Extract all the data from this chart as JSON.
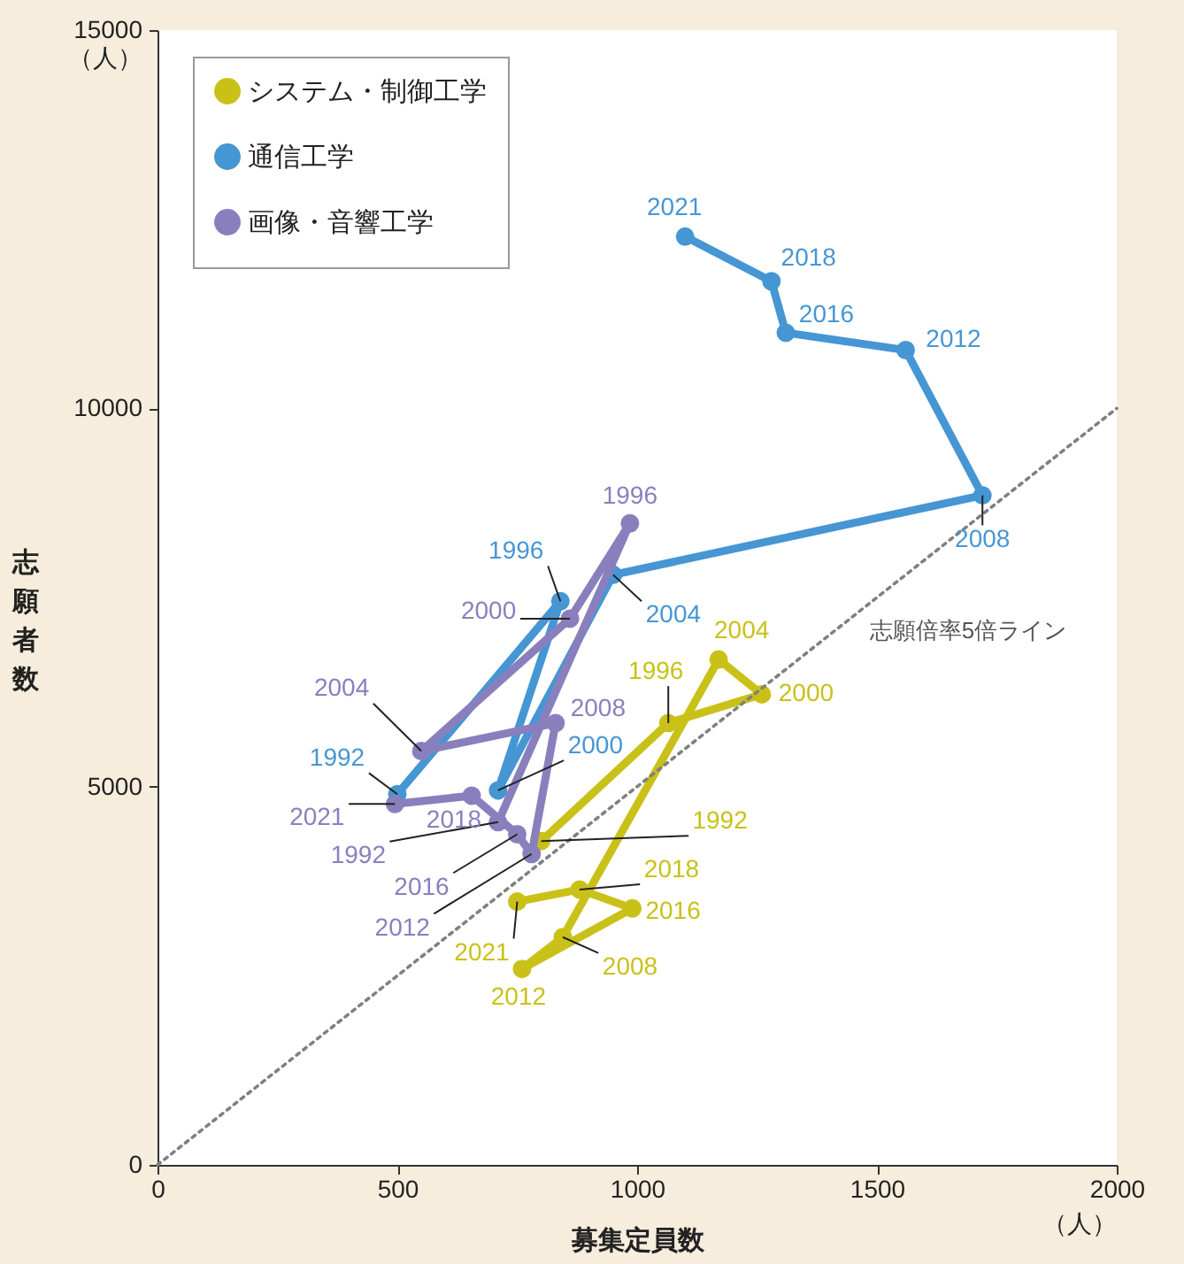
{
  "chart_data": {
    "type": "line",
    "xlabel": "募集定員数",
    "ylabel": "志願者数",
    "xlim": [
      0,
      2000
    ],
    "xticks": [
      0,
      500,
      1000,
      1500,
      2000
    ],
    "ylim": [
      0,
      15000
    ],
    "yticks": [
      0,
      5000,
      10000,
      {
        "value": 15000,
        "label": "15000\n（人）"
      }
    ],
    "grid": false,
    "legend": "top left",
    "marker": "circle",
    "series": [
      {
        "name": "システム・制御工学",
        "color": "#c9c118",
        "x": [
          800,
          1065,
          1260,
          1170,
          845,
          760,
          990,
          880,
          750
        ],
        "values": [
          4280,
          5840,
          6220,
          6680,
          3010,
          2590,
          3390,
          3640,
          3480
        ]
      },
      {
        "name": "通信工学",
        "color": "#4696d4",
        "x": [
          500,
          840,
          710,
          950,
          1720,
          1560,
          1310,
          1280,
          1100
        ],
        "values": [
          4900,
          7450,
          4950,
          7800,
          8850,
          10770,
          11000,
          11680,
          12270
        ]
      },
      {
        "name": "画像・音響工学",
        "color": "#8a7fbd",
        "x": [
          710,
          985,
          860,
          550,
          830,
          780,
          750,
          655,
          495
        ],
        "values": [
          4530,
          8480,
          7220,
          5470,
          5840,
          4110,
          4370,
          4880,
          4770
        ]
      },
      {
        "type": "line",
        "name": "志願倍率5倍ライン",
        "color": "#808080",
        "line_style": "dotted",
        "marker": "none",
        "x": [
          0,
          2000
        ],
        "values": [
          0,
          10000
        ]
      }
    ],
    "annotations": [
      "（人）",
      {
        "text": "1992",
        "x": 800,
        "y": 4280
      },
      {
        "text": "1996",
        "x": 1065,
        "y": 5840
      },
      {
        "text": "2000",
        "x": 1260,
        "y": 6220
      },
      {
        "text": "2004",
        "x": 1170,
        "y": 6680
      },
      {
        "text": "2008",
        "x": 845,
        "y": 3010
      },
      {
        "text": "2012",
        "x": 760,
        "y": 2590
      },
      {
        "text": "2016",
        "x": 990,
        "y": 3390
      },
      {
        "text": "2018",
        "x": 880,
        "y": 3640
      },
      {
        "text": "2021",
        "x": 750,
        "y": 3480
      },
      {
        "text": "1992",
        "x": 500,
        "y": 4900
      },
      {
        "text": "1996",
        "x": 840,
        "y": 7450
      },
      {
        "text": "2000",
        "x": 710,
        "y": 4950
      },
      {
        "text": "2004",
        "x": 950,
        "y": 7800
      },
      {
        "text": "2008",
        "x": 1720,
        "y": 8850
      },
      {
        "text": "2012",
        "x": 1560,
        "y": 10770
      },
      {
        "text": "2016",
        "x": 1310,
        "y": 11000
      },
      {
        "text": "2018",
        "x": 1280,
        "y": 11680
      },
      {
        "text": "2021",
        "x": 1100,
        "y": 12270
      },
      {
        "text": "1992",
        "x": 710,
        "y": 4530
      },
      {
        "text": "1996",
        "x": 985,
        "y": 8480
      },
      {
        "text": "2000",
        "x": 860,
        "y": 7220
      },
      {
        "text": "2004",
        "x": 550,
        "y": 5470
      },
      {
        "text": "2008",
        "x": 830,
        "y": 5840
      },
      {
        "text": "2012",
        "x": 780,
        "y": 4110
      },
      {
        "text": "2016",
        "x": 750,
        "y": 4370
      },
      {
        "text": "2018",
        "x": 655,
        "y": 4880
      },
      {
        "text": "2021",
        "x": 495,
        "y": 4770
      }
    ]
  }
}
